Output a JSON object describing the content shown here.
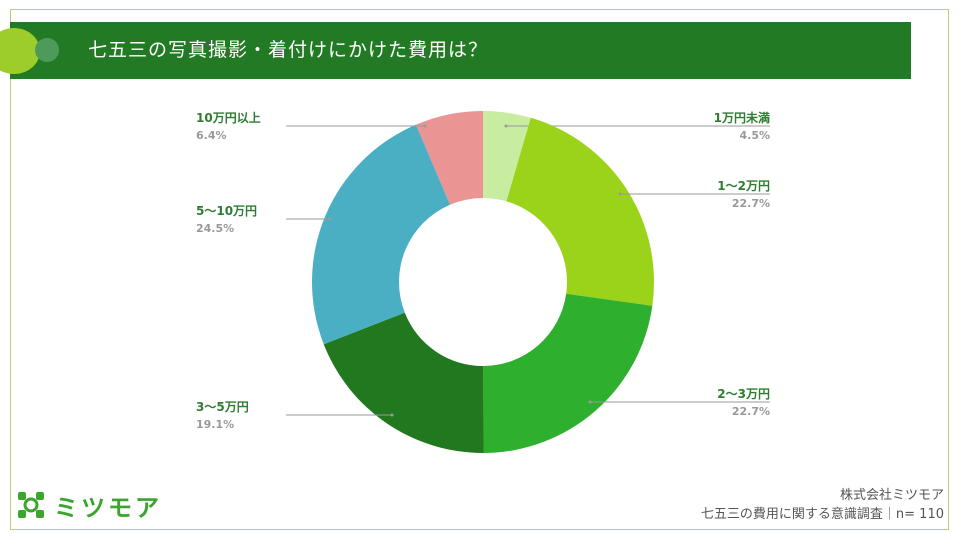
{
  "slide": {
    "title": "七五三の写真撮影・着付けにかけた費用は？",
    "company": "株式会社ミツモア",
    "source": "七五三の費用に関する意識調査｜n= 110",
    "logo_text": "ミツモア"
  },
  "colors": {
    "title_bar": "#227a25",
    "frame": "#b5d27a",
    "label_name": "#2e7d32",
    "label_value": "#999999"
  },
  "chart_data": {
    "type": "pie",
    "donut": true,
    "unit": "%",
    "segments": [
      {
        "label": "1万円未満",
        "value": 4.5,
        "value_text": "4.5%",
        "color": "#c8eca0"
      },
      {
        "label": "1〜2万円",
        "value": 22.7,
        "value_text": "22.7%",
        "color": "#9bd31a"
      },
      {
        "label": "2〜3万円",
        "value": 22.7,
        "value_text": "22.7%",
        "color": "#2eaf2e"
      },
      {
        "label": "3〜5万円",
        "value": 19.1,
        "value_text": "19.1%",
        "color": "#22781f"
      },
      {
        "label": "5〜10万円",
        "value": 24.5,
        "value_text": "24.5%",
        "color": "#4bafc4"
      },
      {
        "label": "10万円以上",
        "value": 6.4,
        "value_text": "6.4%",
        "color": "#ea9494"
      }
    ]
  }
}
